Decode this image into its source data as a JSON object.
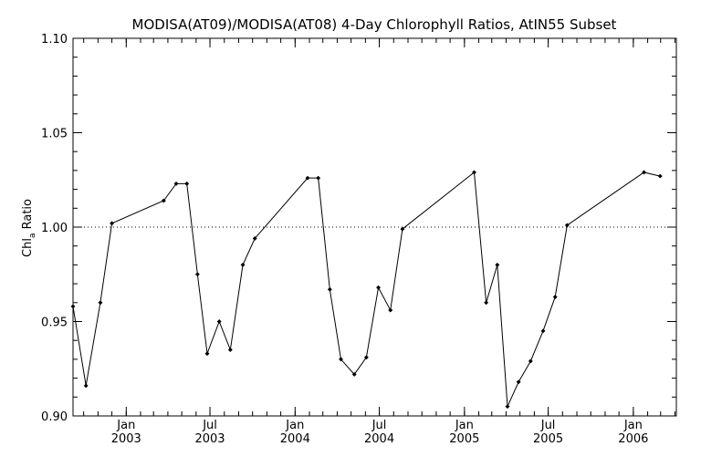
{
  "chart_data": {
    "type": "line",
    "title": "MODISA(AT09)/MODISA(AT08) 4-Day Chlorophyll Ratios, AtIN55 Subset",
    "ylabel_main": "Chl",
    "ylabel_sub": "a",
    "ylabel_tail": " Ratio",
    "xlabel": "",
    "ylim": [
      0.9,
      1.1
    ],
    "yticks": [
      {
        "value": 0.9,
        "label": "0.90"
      },
      {
        "value": 0.95,
        "label": "0.95"
      },
      {
        "value": 1.0,
        "label": "1.00"
      },
      {
        "value": 1.05,
        "label": "1.05"
      },
      {
        "value": 1.1,
        "label": "1.10"
      }
    ],
    "xlim": [
      "2002-09-08",
      "2006-04-04"
    ],
    "xticks": [
      {
        "date": "2003-01-01",
        "month": "Jan",
        "year": "2003"
      },
      {
        "date": "2003-07-01",
        "month": "Jul",
        "year": "2003"
      },
      {
        "date": "2004-01-01",
        "month": "Jan",
        "year": "2004"
      },
      {
        "date": "2004-07-01",
        "month": "Jul",
        "year": "2004"
      },
      {
        "date": "2005-01-01",
        "month": "Jan",
        "year": "2005"
      },
      {
        "date": "2005-07-01",
        "month": "Jul",
        "year": "2005"
      },
      {
        "date": "2006-01-01",
        "month": "Jan",
        "year": "2006"
      }
    ],
    "reference_line": {
      "y": 1.0,
      "style": "dotted"
    },
    "grid": false,
    "series": [
      {
        "points": [
          {
            "x": "2002-09-08",
            "y": 0.958
          },
          {
            "x": "2002-10-06",
            "y": 0.916
          },
          {
            "x": "2002-11-06",
            "y": 0.96
          },
          {
            "x": "2002-12-01",
            "y": 1.002
          },
          {
            "x": "2003-03-23",
            "y": 1.014
          },
          {
            "x": "2003-04-19",
            "y": 1.023
          },
          {
            "x": "2003-05-12",
            "y": 1.023
          },
          {
            "x": "2003-06-04",
            "y": 0.975
          },
          {
            "x": "2003-06-25",
            "y": 0.933
          },
          {
            "x": "2003-07-21",
            "y": 0.95
          },
          {
            "x": "2003-08-14",
            "y": 0.935
          },
          {
            "x": "2003-09-10",
            "y": 0.98
          },
          {
            "x": "2003-10-06",
            "y": 0.994
          },
          {
            "x": "2004-01-28",
            "y": 1.026
          },
          {
            "x": "2004-02-20",
            "y": 1.026
          },
          {
            "x": "2004-03-16",
            "y": 0.967
          },
          {
            "x": "2004-04-09",
            "y": 0.93
          },
          {
            "x": "2004-05-08",
            "y": 0.922
          },
          {
            "x": "2004-06-03",
            "y": 0.931
          },
          {
            "x": "2004-06-29",
            "y": 0.968
          },
          {
            "x": "2004-07-25",
            "y": 0.956
          },
          {
            "x": "2004-08-20",
            "y": 0.999
          },
          {
            "x": "2005-01-22",
            "y": 1.029
          },
          {
            "x": "2005-02-17",
            "y": 0.96
          },
          {
            "x": "2005-03-13",
            "y": 0.98
          },
          {
            "x": "2005-04-04",
            "y": 0.905
          },
          {
            "x": "2005-04-28",
            "y": 0.918
          },
          {
            "x": "2005-05-24",
            "y": 0.929
          },
          {
            "x": "2005-06-20",
            "y": 0.945
          },
          {
            "x": "2005-07-16",
            "y": 0.963
          },
          {
            "x": "2005-08-11",
            "y": 1.001
          },
          {
            "x": "2006-01-24",
            "y": 1.029
          },
          {
            "x": "2006-02-28",
            "y": 1.027
          }
        ]
      }
    ]
  }
}
